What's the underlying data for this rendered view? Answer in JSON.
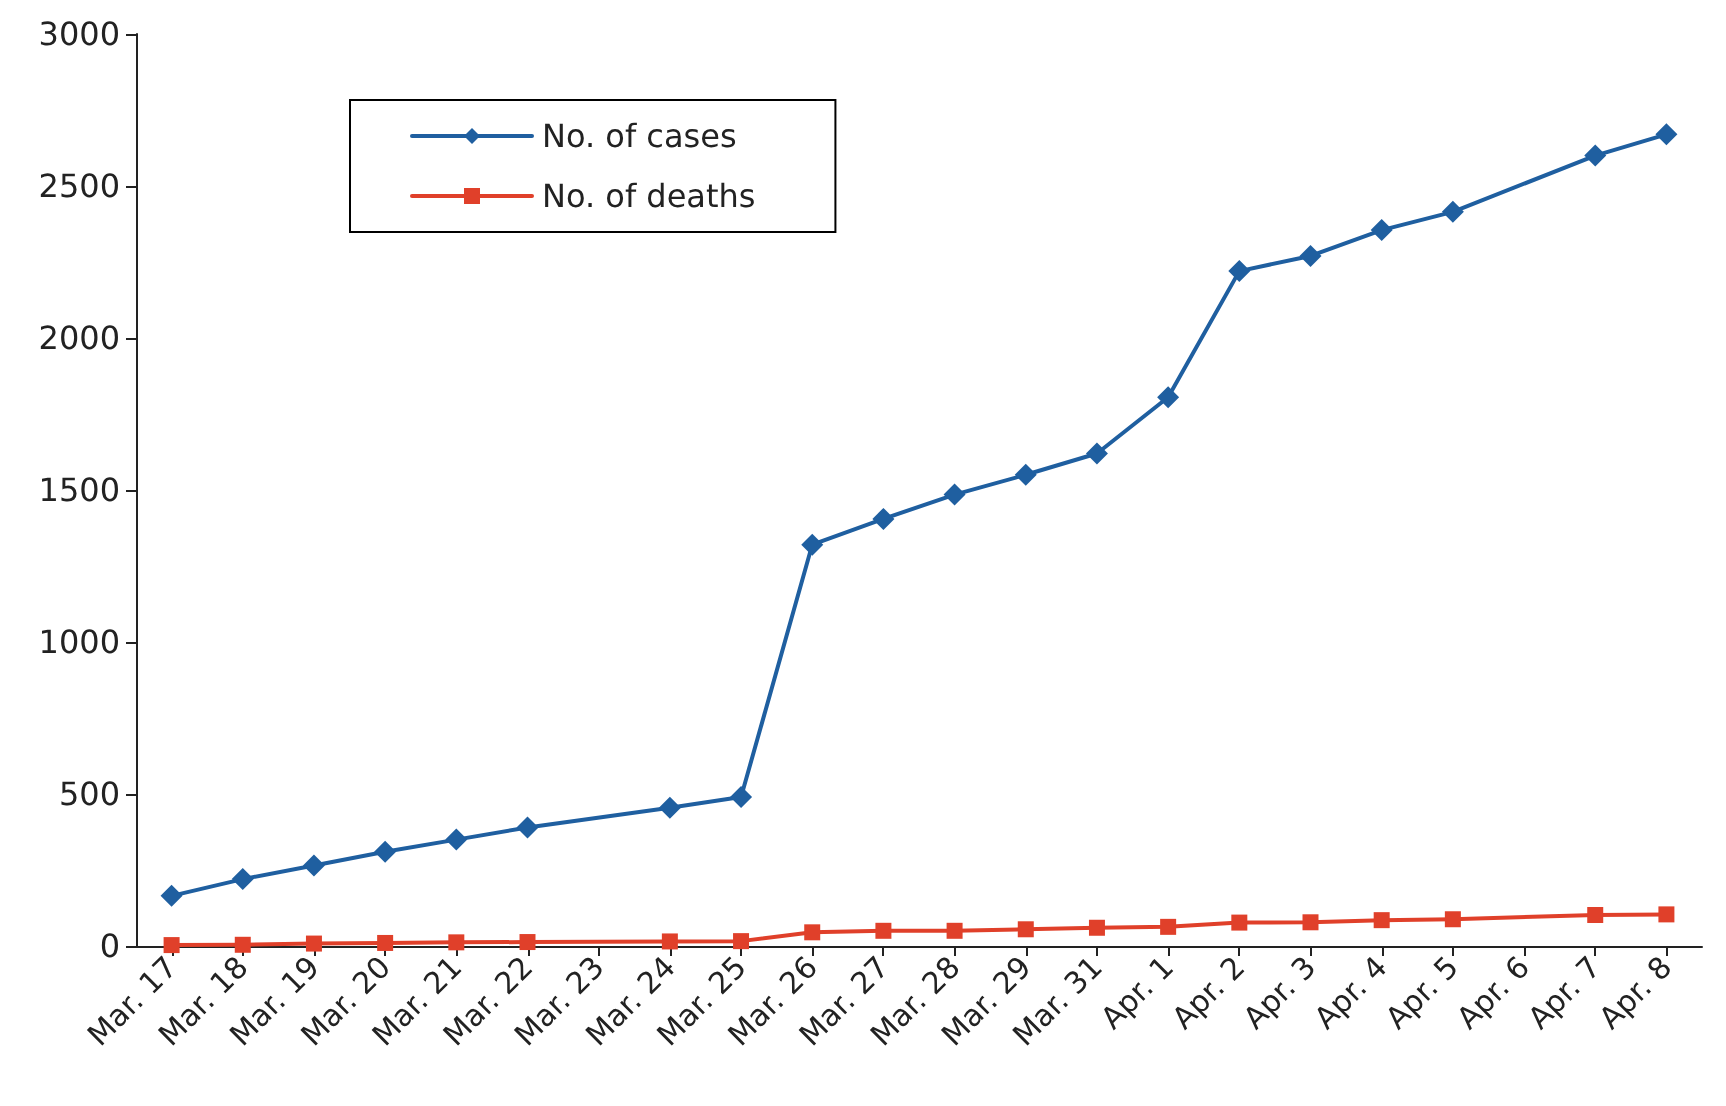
{
  "chart_data": {
    "type": "line",
    "categories": [
      "Mar. 17",
      "Mar. 18",
      "Mar. 19",
      "Mar. 20",
      "Mar. 21",
      "Mar. 22",
      "Mar. 23",
      "Mar. 24",
      "Mar. 25",
      "Mar. 26",
      "Mar. 27",
      "Mar. 28",
      "Mar. 29",
      "Mar. 31",
      "Apr. 1",
      "Apr. 2",
      "Apr. 3",
      "Apr. 4",
      "Apr. 5",
      "Apr. 6",
      "Apr. 7",
      "Apr. 8"
    ],
    "series": [
      {
        "name": "No. of cases",
        "color": "#1f5fa0",
        "marker": "diamond",
        "values": [
          165,
          220,
          265,
          310,
          350,
          390,
          null,
          455,
          490,
          1320,
          1405,
          1485,
          1550,
          1620,
          1805,
          2220,
          2270,
          2355,
          2415,
          null,
          2600,
          2670
        ]
      },
      {
        "name": "No. of deaths",
        "color": "#e0402a",
        "marker": "square",
        "values": [
          3,
          4,
          8,
          10,
          12,
          13,
          null,
          15,
          16,
          45,
          50,
          50,
          55,
          60,
          63,
          77,
          78,
          85,
          88,
          null,
          102,
          104
        ]
      }
    ],
    "ylim": [
      0,
      3000
    ],
    "yticks": [
      0,
      500,
      1000,
      1500,
      2000,
      2500,
      3000
    ],
    "grid": false,
    "legend": "top left",
    "line_style": "solid"
  }
}
